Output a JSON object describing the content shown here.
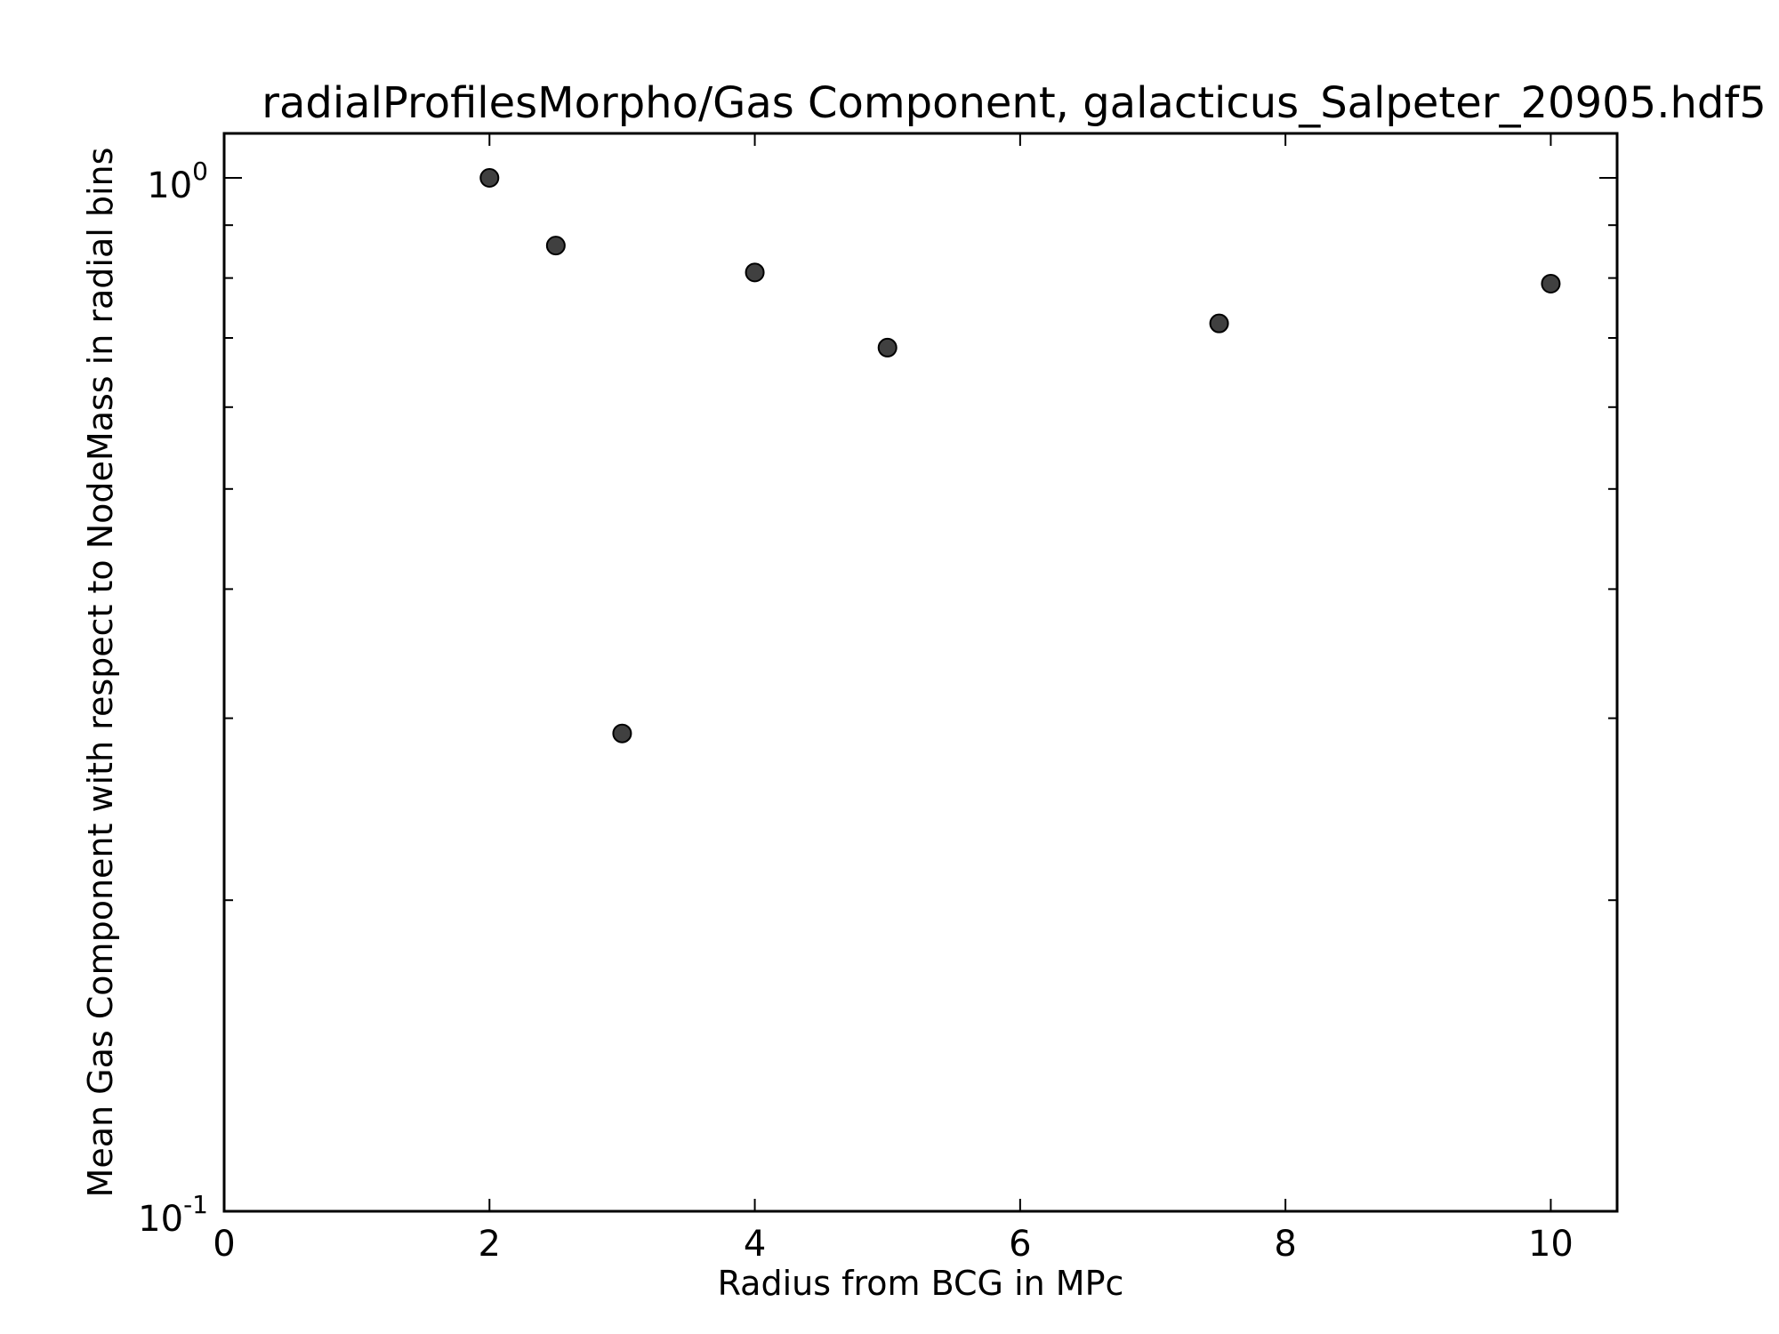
{
  "chart_data": {
    "type": "scatter",
    "title": "radialProfilesMorpho/Gas Component, galacticus_Salpeter_20905.hdf5",
    "xlabel": "Radius from BCG in MPc",
    "ylabel": "Mean Gas Component with respect to NodeMass in radial bins",
    "xlim": [
      0,
      10.5
    ],
    "ylim": [
      0.1,
      1.0
    ],
    "yscale": "log",
    "x_ticks": [
      0,
      2,
      4,
      6,
      8,
      10
    ],
    "x_tick_labels": [
      "0",
      "2",
      "4",
      "6",
      "8",
      "10"
    ],
    "y_ticks": [
      {
        "value": 1.0,
        "base": "10",
        "exponent": "0"
      },
      {
        "value": 0.1,
        "base": "10",
        "exponent": "-1"
      }
    ],
    "y_minor_ticks": [
      0.2,
      0.3,
      0.4,
      0.5,
      0.6,
      0.7,
      0.8,
      0.9
    ],
    "grid": false,
    "marker_color": "#404040",
    "points": [
      {
        "x": 2.0,
        "y": 1.0
      },
      {
        "x": 2.5,
        "y": 0.86
      },
      {
        "x": 3.0,
        "y": 0.29
      },
      {
        "x": 4.0,
        "y": 0.81
      },
      {
        "x": 5.0,
        "y": 0.685
      },
      {
        "x": 7.5,
        "y": 0.723
      },
      {
        "x": 10.0,
        "y": 0.79
      }
    ]
  }
}
